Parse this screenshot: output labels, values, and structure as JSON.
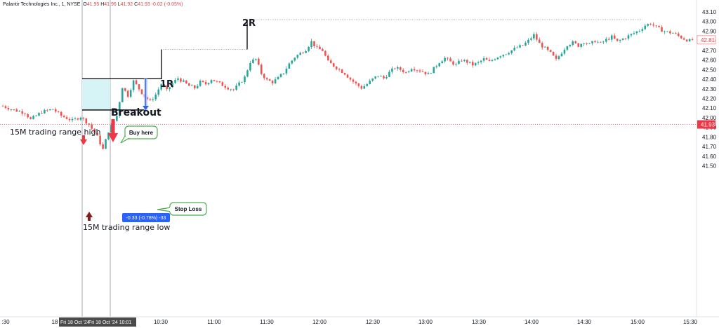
{
  "header": {
    "symbol": "Palantir Technologies Inc., 1, NYSE",
    "o_label": "O",
    "o_value": "41.95",
    "h_label": "H",
    "h_value": "41.96",
    "l_label": "L",
    "l_value": "41.92",
    "c_label": "C",
    "c_value": "41.93",
    "change": "-0.02 (-0.05%)"
  },
  "colors": {
    "up": "#26a69a",
    "down": "#ef5350",
    "range_fill": "#d6f4f6",
    "arrow_red": "#f23645",
    "arrow_dark": "#8b1a1a",
    "measure_blue": "#2962ff",
    "callout_border": "#4caf50",
    "price_tag_red": "#f23645",
    "price_tag_pink": "#f7a1a8",
    "crosshair_tag": "#4a4a4a"
  },
  "chart_data": {
    "type": "candlestick",
    "symbol": "PLTR",
    "interval": "1 min",
    "ylim": [
      41.5,
      43.1
    ],
    "y_ticks": [
      "43.10",
      "43.00",
      "42.90",
      "42.80",
      "42.70",
      "42.60",
      "42.50",
      "42.40",
      "42.30",
      "42.20",
      "42.10",
      "42.00",
      "41.90",
      "41.80",
      "41.70",
      "41.60",
      "41.50"
    ],
    "x_ticks": [
      ":30",
      "10:30",
      "11:00",
      "11:30",
      "12:00",
      "12:30",
      "13:00",
      "13:30",
      "14:00",
      "14:30",
      "15:00",
      "15:30"
    ],
    "x_ticks_edge": "18",
    "crosshair_labels": [
      "Fri 18 Oct '24",
      "Fri 18 Oct '24  10:01"
    ],
    "current_price": "41.93",
    "marker_price": "42.81",
    "close_path": [
      [
        0,
        42.12
      ],
      [
        4,
        42.08
      ],
      [
        8,
        42.05
      ],
      [
        10,
        41.98
      ],
      [
        14,
        42.06
      ],
      [
        18,
        42.09
      ],
      [
        21,
        42.02
      ],
      [
        25,
        41.97
      ],
      [
        28,
        42.01
      ],
      [
        31,
        41.93
      ],
      [
        34,
        41.8
      ],
      [
        36,
        41.67
      ],
      [
        38,
        41.86
      ],
      [
        41,
        42.02
      ],
      [
        43,
        42.32
      ],
      [
        45,
        42.23
      ],
      [
        47,
        42.38
      ],
      [
        49,
        42.3
      ],
      [
        51,
        42.22
      ],
      [
        53,
        42.17
      ],
      [
        55,
        42.24
      ],
      [
        57,
        42.35
      ],
      [
        59,
        42.28
      ],
      [
        61,
        42.36
      ],
      [
        63,
        42.41
      ],
      [
        65,
        42.37
      ],
      [
        67,
        42.33
      ],
      [
        69,
        42.31
      ],
      [
        71,
        42.37
      ],
      [
        73,
        42.35
      ],
      [
        75,
        42.4
      ],
      [
        77,
        42.37
      ],
      [
        79,
        42.34
      ],
      [
        81,
        42.31
      ],
      [
        83,
        42.29
      ],
      [
        85,
        42.35
      ],
      [
        87,
        42.42
      ],
      [
        89,
        42.58
      ],
      [
        91,
        42.61
      ],
      [
        93,
        42.46
      ],
      [
        95,
        42.39
      ],
      [
        97,
        42.37
      ],
      [
        99,
        42.41
      ],
      [
        101,
        42.47
      ],
      [
        103,
        42.56
      ],
      [
        105,
        42.63
      ],
      [
        107,
        42.67
      ],
      [
        109,
        42.71
      ],
      [
        111,
        42.79
      ],
      [
        113,
        42.72
      ],
      [
        115,
        42.7
      ],
      [
        117,
        42.58
      ],
      [
        119,
        42.54
      ],
      [
        121,
        42.5
      ],
      [
        123,
        42.46
      ],
      [
        125,
        42.4
      ],
      [
        127,
        42.35
      ],
      [
        129,
        42.31
      ],
      [
        131,
        42.35
      ],
      [
        133,
        42.4
      ],
      [
        135,
        42.44
      ],
      [
        137,
        42.41
      ],
      [
        139,
        42.47
      ],
      [
        141,
        42.52
      ],
      [
        143,
        42.5
      ],
      [
        145,
        42.47
      ],
      [
        147,
        42.52
      ],
      [
        149,
        42.5
      ],
      [
        151,
        42.48
      ],
      [
        153,
        42.45
      ],
      [
        155,
        42.51
      ],
      [
        157,
        42.58
      ],
      [
        159,
        42.62
      ],
      [
        161,
        42.58
      ],
      [
        163,
        42.55
      ],
      [
        165,
        42.6
      ],
      [
        167,
        42.58
      ],
      [
        169,
        42.55
      ],
      [
        171,
        42.57
      ],
      [
        173,
        42.61
      ],
      [
        175,
        42.58
      ],
      [
        177,
        42.62
      ],
      [
        179,
        42.65
      ],
      [
        181,
        42.67
      ],
      [
        183,
        42.7
      ],
      [
        185,
        42.73
      ],
      [
        187,
        42.75
      ],
      [
        189,
        42.8
      ],
      [
        191,
        42.86
      ],
      [
        193,
        42.77
      ],
      [
        195,
        42.72
      ],
      [
        197,
        42.67
      ],
      [
        199,
        42.6
      ],
      [
        201,
        42.68
      ],
      [
        203,
        42.76
      ],
      [
        205,
        42.78
      ],
      [
        207,
        42.75
      ],
      [
        209,
        42.79
      ],
      [
        211,
        42.76
      ],
      [
        213,
        42.8
      ],
      [
        215,
        42.77
      ],
      [
        217,
        42.81
      ],
      [
        219,
        42.84
      ],
      [
        221,
        42.79
      ],
      [
        223,
        42.82
      ],
      [
        225,
        42.85
      ],
      [
        227,
        42.88
      ],
      [
        229,
        42.91
      ],
      [
        231,
        42.96
      ],
      [
        233,
        42.98
      ],
      [
        235,
        42.94
      ],
      [
        237,
        42.91
      ],
      [
        239,
        42.89
      ],
      [
        241,
        42.88
      ],
      [
        243,
        42.85
      ],
      [
        245,
        42.82
      ],
      [
        247,
        42.8
      ],
      [
        248,
        42.81
      ]
    ]
  },
  "annotations": {
    "two_r": "2R",
    "one_r": "1R",
    "breakout": "Breakout",
    "range_high": "15M trading range high",
    "range_low": "15M trading range low",
    "buy_here": "Buy here",
    "stop_loss": "Stop Loss",
    "measure": "-0.33 (-0.78%) -33"
  }
}
